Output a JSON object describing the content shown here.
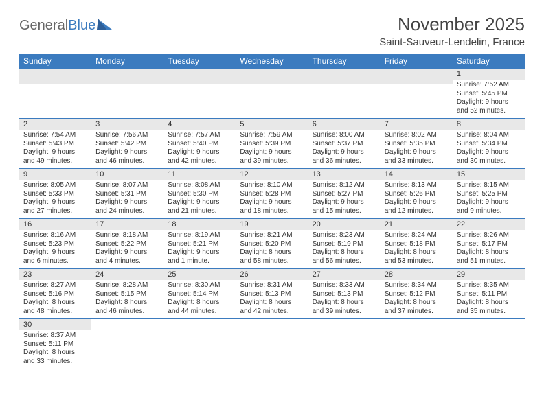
{
  "logo": {
    "general": "General",
    "blue": "Blue"
  },
  "title": "November 2025",
  "location": "Saint-Sauveur-Lendelin, France",
  "day_headers": [
    "Sunday",
    "Monday",
    "Tuesday",
    "Wednesday",
    "Thursday",
    "Friday",
    "Saturday"
  ],
  "colors": {
    "header_bg": "#3b7bbf",
    "header_text": "#ffffff",
    "daynum_bg": "#e8e8e8",
    "row_divider": "#3b7bbf",
    "text": "#333333",
    "logo_gray": "#666666",
    "logo_blue": "#3b7bbf"
  },
  "weeks": [
    [
      null,
      null,
      null,
      null,
      null,
      null,
      {
        "n": "1",
        "sunrise": "Sunrise: 7:52 AM",
        "sunset": "Sunset: 5:45 PM",
        "day1": "Daylight: 9 hours",
        "day2": "and 52 minutes."
      }
    ],
    [
      {
        "n": "2",
        "sunrise": "Sunrise: 7:54 AM",
        "sunset": "Sunset: 5:43 PM",
        "day1": "Daylight: 9 hours",
        "day2": "and 49 minutes."
      },
      {
        "n": "3",
        "sunrise": "Sunrise: 7:56 AM",
        "sunset": "Sunset: 5:42 PM",
        "day1": "Daylight: 9 hours",
        "day2": "and 46 minutes."
      },
      {
        "n": "4",
        "sunrise": "Sunrise: 7:57 AM",
        "sunset": "Sunset: 5:40 PM",
        "day1": "Daylight: 9 hours",
        "day2": "and 42 minutes."
      },
      {
        "n": "5",
        "sunrise": "Sunrise: 7:59 AM",
        "sunset": "Sunset: 5:39 PM",
        "day1": "Daylight: 9 hours",
        "day2": "and 39 minutes."
      },
      {
        "n": "6",
        "sunrise": "Sunrise: 8:00 AM",
        "sunset": "Sunset: 5:37 PM",
        "day1": "Daylight: 9 hours",
        "day2": "and 36 minutes."
      },
      {
        "n": "7",
        "sunrise": "Sunrise: 8:02 AM",
        "sunset": "Sunset: 5:35 PM",
        "day1": "Daylight: 9 hours",
        "day2": "and 33 minutes."
      },
      {
        "n": "8",
        "sunrise": "Sunrise: 8:04 AM",
        "sunset": "Sunset: 5:34 PM",
        "day1": "Daylight: 9 hours",
        "day2": "and 30 minutes."
      }
    ],
    [
      {
        "n": "9",
        "sunrise": "Sunrise: 8:05 AM",
        "sunset": "Sunset: 5:33 PM",
        "day1": "Daylight: 9 hours",
        "day2": "and 27 minutes."
      },
      {
        "n": "10",
        "sunrise": "Sunrise: 8:07 AM",
        "sunset": "Sunset: 5:31 PM",
        "day1": "Daylight: 9 hours",
        "day2": "and 24 minutes."
      },
      {
        "n": "11",
        "sunrise": "Sunrise: 8:08 AM",
        "sunset": "Sunset: 5:30 PM",
        "day1": "Daylight: 9 hours",
        "day2": "and 21 minutes."
      },
      {
        "n": "12",
        "sunrise": "Sunrise: 8:10 AM",
        "sunset": "Sunset: 5:28 PM",
        "day1": "Daylight: 9 hours",
        "day2": "and 18 minutes."
      },
      {
        "n": "13",
        "sunrise": "Sunrise: 8:12 AM",
        "sunset": "Sunset: 5:27 PM",
        "day1": "Daylight: 9 hours",
        "day2": "and 15 minutes."
      },
      {
        "n": "14",
        "sunrise": "Sunrise: 8:13 AM",
        "sunset": "Sunset: 5:26 PM",
        "day1": "Daylight: 9 hours",
        "day2": "and 12 minutes."
      },
      {
        "n": "15",
        "sunrise": "Sunrise: 8:15 AM",
        "sunset": "Sunset: 5:25 PM",
        "day1": "Daylight: 9 hours",
        "day2": "and 9 minutes."
      }
    ],
    [
      {
        "n": "16",
        "sunrise": "Sunrise: 8:16 AM",
        "sunset": "Sunset: 5:23 PM",
        "day1": "Daylight: 9 hours",
        "day2": "and 6 minutes."
      },
      {
        "n": "17",
        "sunrise": "Sunrise: 8:18 AM",
        "sunset": "Sunset: 5:22 PM",
        "day1": "Daylight: 9 hours",
        "day2": "and 4 minutes."
      },
      {
        "n": "18",
        "sunrise": "Sunrise: 8:19 AM",
        "sunset": "Sunset: 5:21 PM",
        "day1": "Daylight: 9 hours",
        "day2": "and 1 minute."
      },
      {
        "n": "19",
        "sunrise": "Sunrise: 8:21 AM",
        "sunset": "Sunset: 5:20 PM",
        "day1": "Daylight: 8 hours",
        "day2": "and 58 minutes."
      },
      {
        "n": "20",
        "sunrise": "Sunrise: 8:23 AM",
        "sunset": "Sunset: 5:19 PM",
        "day1": "Daylight: 8 hours",
        "day2": "and 56 minutes."
      },
      {
        "n": "21",
        "sunrise": "Sunrise: 8:24 AM",
        "sunset": "Sunset: 5:18 PM",
        "day1": "Daylight: 8 hours",
        "day2": "and 53 minutes."
      },
      {
        "n": "22",
        "sunrise": "Sunrise: 8:26 AM",
        "sunset": "Sunset: 5:17 PM",
        "day1": "Daylight: 8 hours",
        "day2": "and 51 minutes."
      }
    ],
    [
      {
        "n": "23",
        "sunrise": "Sunrise: 8:27 AM",
        "sunset": "Sunset: 5:16 PM",
        "day1": "Daylight: 8 hours",
        "day2": "and 48 minutes."
      },
      {
        "n": "24",
        "sunrise": "Sunrise: 8:28 AM",
        "sunset": "Sunset: 5:15 PM",
        "day1": "Daylight: 8 hours",
        "day2": "and 46 minutes."
      },
      {
        "n": "25",
        "sunrise": "Sunrise: 8:30 AM",
        "sunset": "Sunset: 5:14 PM",
        "day1": "Daylight: 8 hours",
        "day2": "and 44 minutes."
      },
      {
        "n": "26",
        "sunrise": "Sunrise: 8:31 AM",
        "sunset": "Sunset: 5:13 PM",
        "day1": "Daylight: 8 hours",
        "day2": "and 42 minutes."
      },
      {
        "n": "27",
        "sunrise": "Sunrise: 8:33 AM",
        "sunset": "Sunset: 5:13 PM",
        "day1": "Daylight: 8 hours",
        "day2": "and 39 minutes."
      },
      {
        "n": "28",
        "sunrise": "Sunrise: 8:34 AM",
        "sunset": "Sunset: 5:12 PM",
        "day1": "Daylight: 8 hours",
        "day2": "and 37 minutes."
      },
      {
        "n": "29",
        "sunrise": "Sunrise: 8:35 AM",
        "sunset": "Sunset: 5:11 PM",
        "day1": "Daylight: 8 hours",
        "day2": "and 35 minutes."
      }
    ],
    [
      {
        "n": "30",
        "sunrise": "Sunrise: 8:37 AM",
        "sunset": "Sunset: 5:11 PM",
        "day1": "Daylight: 8 hours",
        "day2": "and 33 minutes."
      },
      null,
      null,
      null,
      null,
      null,
      null
    ]
  ]
}
